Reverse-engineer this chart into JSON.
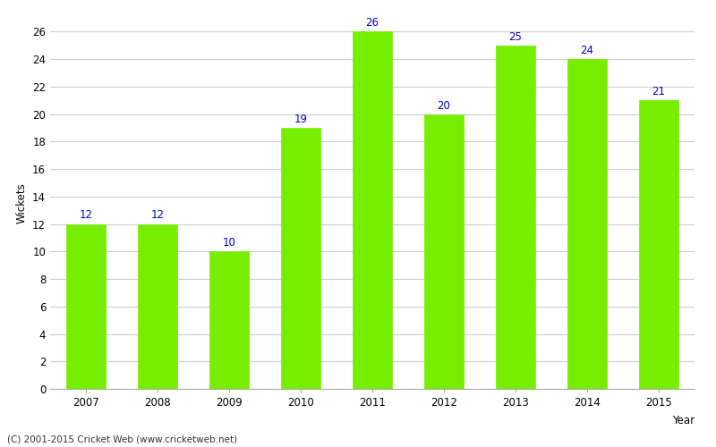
{
  "years": [
    "2007",
    "2008",
    "2009",
    "2010",
    "2011",
    "2012",
    "2013",
    "2014",
    "2015"
  ],
  "values": [
    12,
    12,
    10,
    19,
    26,
    20,
    25,
    24,
    21
  ],
  "bar_color": "#77ee00",
  "bar_edge_color": "#77ee00",
  "label_color": "#0000cc",
  "xlabel": "Year",
  "ylabel": "Wickets",
  "ylim": [
    0,
    27
  ],
  "yticks": [
    0,
    2,
    4,
    6,
    8,
    10,
    12,
    14,
    16,
    18,
    20,
    22,
    24,
    26
  ],
  "grid_color": "#cccccc",
  "background_color": "#ffffff",
  "footnote": "(C) 2001-2015 Cricket Web (www.cricketweb.net)",
  "label_fontsize": 8.5,
  "axis_fontsize": 8.5,
  "bar_width": 0.55
}
